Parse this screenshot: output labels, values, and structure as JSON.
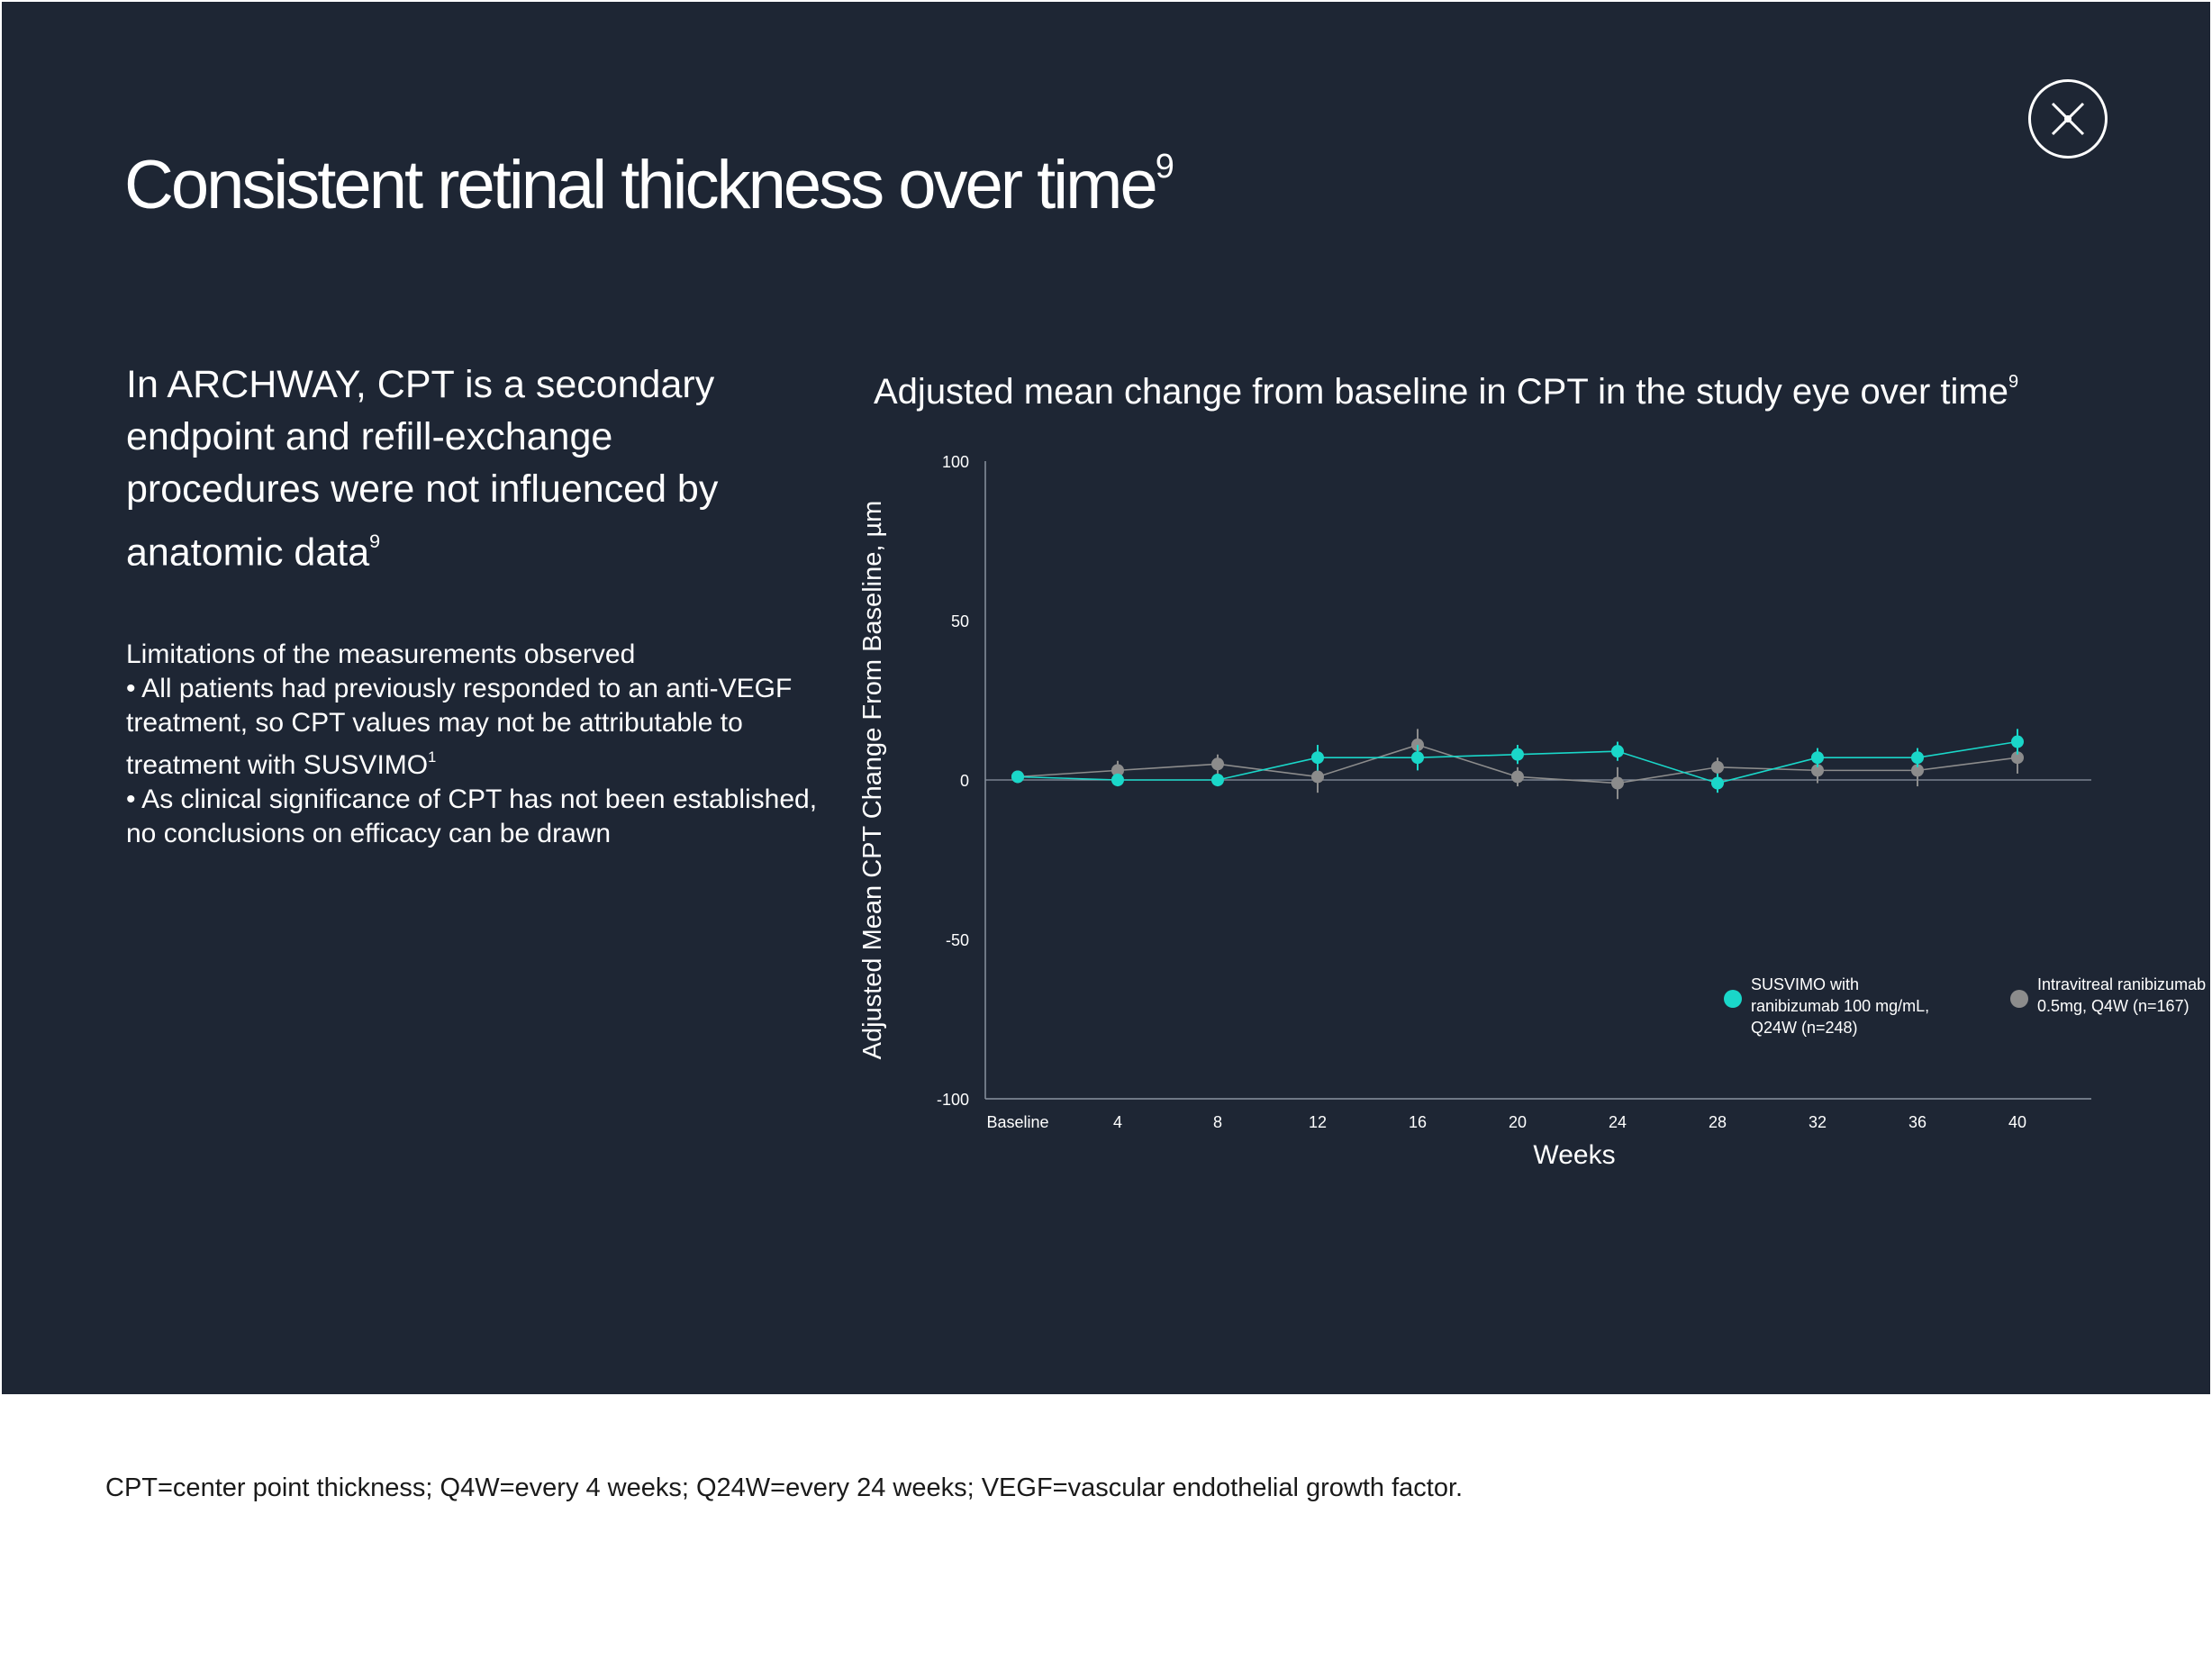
{
  "title": "Consistent retinal thickness over time",
  "title_ref": "9",
  "lead": {
    "text": "In ARCHWAY, CPT is a secondary endpoint and refill-exchange procedures were not influenced by anatomic data",
    "ref": "9"
  },
  "limitations": {
    "heading": "Limitations of the measurements observed",
    "bullet1": "• All patients had previously responded to an anti-VEGF treatment, so CPT values may not be attributable to treatment with SUSVIMO",
    "bullet1_ref": "1",
    "bullet2": "• As clinical significance of CPT has not been established, no conclusions on efficacy can be drawn"
  },
  "close_button": {
    "icon": "close-icon"
  },
  "footnote": "CPT=center point thickness; Q4W=every 4 weeks; Q24W=every 24 weeks; VEGF=vascular endothelial growth factor.",
  "colors": {
    "background": "#1e2634",
    "text": "#ffffff",
    "susvimo": "#1ad7c9",
    "intravitreal": "#8c8c8c",
    "axis": "#8a93a0"
  },
  "chart_data": {
    "type": "line",
    "title": "Adjusted mean change from baseline in CPT  in the study eye over time",
    "title_ref": "9",
    "xlabel": "Weeks",
    "ylabel": "Adjusted Mean CPT Change From Baseline, µm",
    "categories": [
      "Baseline",
      "4",
      "8",
      "12",
      "16",
      "20",
      "24",
      "28",
      "32",
      "36",
      "40"
    ],
    "ylim": [
      -100,
      100
    ],
    "yticks": [
      100,
      50,
      0,
      -50,
      -100
    ],
    "grid": false,
    "legend_position": "bottom-right",
    "series": [
      {
        "name": "SUSVIMO with ranibizumab 100 mg/mL, Q24W (n=248)",
        "legend_lines": [
          "SUSVIMO with",
          "ranibizumab 100 mg/mL,",
          "Q24W (n=248)"
        ],
        "values": [
          1,
          0,
          0,
          7,
          7,
          8,
          9,
          -1,
          7,
          7,
          12
        ],
        "error": [
          1,
          2,
          2,
          4,
          4,
          3,
          3,
          3,
          3,
          3,
          4
        ]
      },
      {
        "name": "Intravitreal ranibizumab 0.5mg, Q4W (n=167)",
        "legend_lines": [
          "Intravitreal ranibizumab",
          "0.5mg, Q4W (n=167)"
        ],
        "values": [
          1,
          3,
          5,
          1,
          11,
          1,
          -1,
          4,
          3,
          3,
          7
        ],
        "error": [
          1,
          3,
          3,
          5,
          5,
          3,
          5,
          3,
          4,
          5,
          5
        ]
      }
    ]
  }
}
